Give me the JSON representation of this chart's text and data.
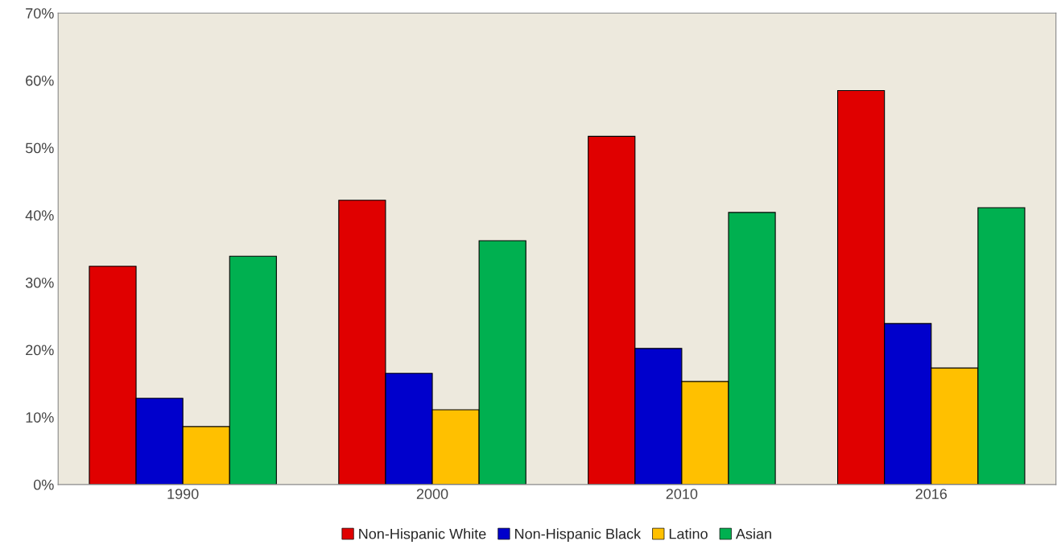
{
  "chart_data": {
    "type": "bar",
    "categories": [
      "1990",
      "2000",
      "2010",
      "2016"
    ],
    "series": [
      {
        "name": "Non-Hispanic White",
        "color": "#e00000",
        "values": [
          32.4,
          42.2,
          51.7,
          58.5
        ]
      },
      {
        "name": "Non-Hispanic Black",
        "color": "#0000cc",
        "values": [
          12.8,
          16.5,
          20.2,
          23.9
        ]
      },
      {
        "name": "Latino",
        "color": "#ffc000",
        "values": [
          8.6,
          11.1,
          15.3,
          17.3
        ]
      },
      {
        "name": "Asian",
        "color": "#00b050",
        "values": [
          33.9,
          36.2,
          40.4,
          41.1
        ]
      }
    ],
    "ylim": [
      0,
      70
    ],
    "yticks": [
      {
        "value": 0,
        "label": "0%"
      },
      {
        "value": 10,
        "label": "10%"
      },
      {
        "value": 20,
        "label": "20%"
      },
      {
        "value": 30,
        "label": "30%"
      },
      {
        "value": 40,
        "label": "40%"
      },
      {
        "value": 50,
        "label": "50%"
      },
      {
        "value": 60,
        "label": "60%"
      },
      {
        "value": 70,
        "label": "70%"
      }
    ],
    "grid": false,
    "legend": "bottom"
  }
}
